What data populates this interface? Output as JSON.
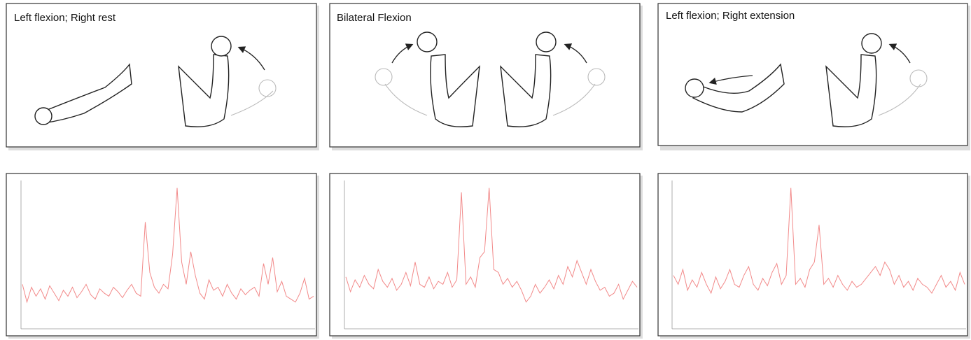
{
  "panels": [
    {
      "title": "Left flexion; Right rest"
    },
    {
      "title": "Bilateral Flexion"
    },
    {
      "title": "Left flexion; Right extension"
    }
  ],
  "chart_data": [
    {
      "type": "line",
      "color": "#f28a8a",
      "ylim": [
        0,
        100
      ],
      "values": [
        30,
        18,
        28,
        22,
        27,
        20,
        29,
        24,
        19,
        26,
        22,
        28,
        21,
        25,
        30,
        23,
        20,
        27,
        24,
        22,
        28,
        25,
        21,
        26,
        30,
        24,
        22,
        72,
        38,
        28,
        24,
        30,
        27,
        50,
        95,
        45,
        30,
        52,
        36,
        24,
        20,
        33,
        26,
        28,
        22,
        30,
        24,
        20,
        27,
        23,
        26,
        28,
        22,
        44,
        30,
        48,
        25,
        32,
        22,
        20,
        18,
        24,
        34,
        20,
        22
      ]
    },
    {
      "type": "line",
      "color": "#f28a8a",
      "ylim": [
        0,
        100
      ],
      "values": [
        35,
        25,
        33,
        28,
        36,
        30,
        27,
        40,
        32,
        28,
        34,
        26,
        30,
        38,
        29,
        45,
        30,
        28,
        35,
        27,
        32,
        30,
        38,
        28,
        33,
        92,
        30,
        35,
        28,
        48,
        52,
        95,
        40,
        38,
        30,
        34,
        28,
        32,
        26,
        18,
        22,
        30,
        24,
        28,
        33,
        27,
        36,
        30,
        42,
        35,
        46,
        38,
        30,
        40,
        32,
        26,
        28,
        22,
        24,
        30,
        20,
        26,
        32,
        28
      ]
    },
    {
      "type": "line",
      "color": "#f28a8a",
      "ylim": [
        0,
        100
      ],
      "values": [
        36,
        30,
        40,
        26,
        33,
        28,
        38,
        30,
        24,
        35,
        27,
        32,
        40,
        30,
        28,
        36,
        42,
        30,
        26,
        34,
        29,
        38,
        44,
        30,
        36,
        95,
        30,
        34,
        28,
        40,
        45,
        70,
        30,
        34,
        28,
        36,
        30,
        26,
        32,
        28,
        30,
        34,
        38,
        42,
        36,
        45,
        40,
        30,
        36,
        28,
        32,
        26,
        34,
        30,
        28,
        24,
        30,
        36,
        28,
        32,
        26,
        38,
        30
      ]
    }
  ]
}
